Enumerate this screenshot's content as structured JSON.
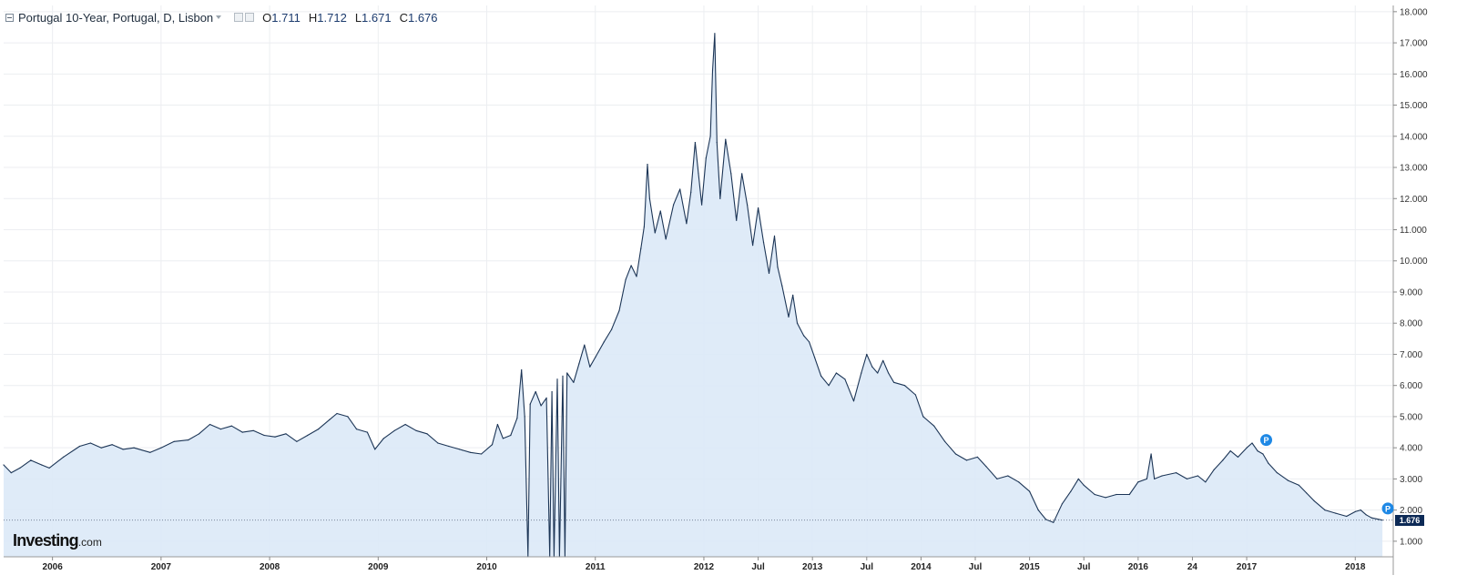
{
  "legend": {
    "title": "Portugal 10-Year, Portugal, D, Lisbon",
    "open_key": "O",
    "open": "1.711",
    "high_key": "H",
    "high": "1.712",
    "low_key": "L",
    "low": "1.671",
    "close_key": "C",
    "close": "1.676"
  },
  "logo": {
    "bold": "Investing",
    "suffix": ".com"
  },
  "last_price_label": "1.676",
  "pin_markers": [
    {
      "label": "P"
    },
    {
      "label": "P"
    }
  ],
  "colors": {
    "line": "#1c3556",
    "fill": "#dce9f7",
    "grid": "#eceef1",
    "price_tag": "#0d2a56",
    "marker": "#1e88e5"
  },
  "chart_data": {
    "type": "area",
    "title": "Portugal 10-Year, Portugal, D, Lisbon",
    "y_axis_side": "right",
    "ylim": [
      0.5,
      18.2
    ],
    "y_ticks": [
      1,
      2,
      3,
      4,
      5,
      6,
      7,
      8,
      9,
      10,
      11,
      12,
      13,
      14,
      15,
      16,
      17,
      18
    ],
    "y_tick_labels": [
      "1.000",
      "2.000",
      "3.000",
      "4.000",
      "5.000",
      "6.000",
      "7.000",
      "8.000",
      "9.000",
      "10.000",
      "11.000",
      "12.000",
      "13.000",
      "14.000",
      "15.000",
      "16.000",
      "17.000",
      "18.000"
    ],
    "x_tick_labels": [
      {
        "t": 2006.0,
        "label": "2006"
      },
      {
        "t": 2007.0,
        "label": "2007"
      },
      {
        "t": 2008.0,
        "label": "2008"
      },
      {
        "t": 2009.0,
        "label": "2009"
      },
      {
        "t": 2010.0,
        "label": "2010"
      },
      {
        "t": 2011.0,
        "label": "2011"
      },
      {
        "t": 2012.0,
        "label": "2012"
      },
      {
        "t": 2012.5,
        "label": "Jul"
      },
      {
        "t": 2013.0,
        "label": "2013"
      },
      {
        "t": 2013.5,
        "label": "Jul"
      },
      {
        "t": 2014.0,
        "label": "2014"
      },
      {
        "t": 2014.5,
        "label": "Jul"
      },
      {
        "t": 2015.0,
        "label": "2015"
      },
      {
        "t": 2015.5,
        "label": "Jul"
      },
      {
        "t": 2016.0,
        "label": "2016"
      },
      {
        "t": 2016.5,
        "label": "24"
      },
      {
        "t": 2017.0,
        "label": "2017"
      },
      {
        "t": 2018.0,
        "label": "2018"
      }
    ],
    "xlim": [
      2005.55,
      2018.35
    ],
    "last_price": 1.676,
    "series": [
      {
        "points": [
          [
            2005.55,
            3.45
          ],
          [
            2005.62,
            3.2
          ],
          [
            2005.7,
            3.35
          ],
          [
            2005.8,
            3.6
          ],
          [
            2005.9,
            3.45
          ],
          [
            2005.97,
            3.35
          ],
          [
            2006.1,
            3.7
          ],
          [
            2006.25,
            4.05
          ],
          [
            2006.35,
            4.15
          ],
          [
            2006.45,
            4.0
          ],
          [
            2006.55,
            4.1
          ],
          [
            2006.65,
            3.95
          ],
          [
            2006.75,
            4.0
          ],
          [
            2006.9,
            3.85
          ],
          [
            2007.0,
            4.0
          ],
          [
            2007.12,
            4.2
          ],
          [
            2007.25,
            4.25
          ],
          [
            2007.35,
            4.45
          ],
          [
            2007.45,
            4.75
          ],
          [
            2007.55,
            4.6
          ],
          [
            2007.65,
            4.7
          ],
          [
            2007.75,
            4.5
          ],
          [
            2007.85,
            4.55
          ],
          [
            2007.95,
            4.4
          ],
          [
            2008.05,
            4.35
          ],
          [
            2008.15,
            4.45
          ],
          [
            2008.25,
            4.2
          ],
          [
            2008.35,
            4.4
          ],
          [
            2008.45,
            4.6
          ],
          [
            2008.55,
            4.9
          ],
          [
            2008.62,
            5.1
          ],
          [
            2008.72,
            5.0
          ],
          [
            2008.8,
            4.6
          ],
          [
            2008.9,
            4.5
          ],
          [
            2008.97,
            3.95
          ],
          [
            2009.05,
            4.3
          ],
          [
            2009.15,
            4.55
          ],
          [
            2009.25,
            4.75
          ],
          [
            2009.35,
            4.55
          ],
          [
            2009.45,
            4.45
          ],
          [
            2009.55,
            4.15
          ],
          [
            2009.65,
            4.05
          ],
          [
            2009.75,
            3.95
          ],
          [
            2009.85,
            3.85
          ],
          [
            2009.95,
            3.8
          ],
          [
            2010.05,
            4.1
          ],
          [
            2010.1,
            4.75
          ],
          [
            2010.15,
            4.3
          ],
          [
            2010.22,
            4.4
          ],
          [
            2010.28,
            4.95
          ],
          [
            2010.32,
            6.5
          ],
          [
            2010.35,
            5.0
          ],
          [
            2010.38,
            0.5
          ],
          [
            2010.4,
            5.4
          ],
          [
            2010.45,
            5.8
          ],
          [
            2010.5,
            5.35
          ],
          [
            2010.55,
            5.6
          ],
          [
            2010.58,
            0.5
          ],
          [
            2010.6,
            5.8
          ],
          [
            2010.62,
            0.5
          ],
          [
            2010.65,
            6.2
          ],
          [
            2010.67,
            0.5
          ],
          [
            2010.7,
            6.3
          ],
          [
            2010.72,
            0.5
          ],
          [
            2010.74,
            6.4
          ],
          [
            2010.8,
            6.1
          ],
          [
            2010.85,
            6.7
          ],
          [
            2010.9,
            7.3
          ],
          [
            2010.95,
            6.6
          ],
          [
            2011.0,
            6.9
          ],
          [
            2011.08,
            7.4
          ],
          [
            2011.15,
            7.8
          ],
          [
            2011.22,
            8.4
          ],
          [
            2011.28,
            9.4
          ],
          [
            2011.33,
            9.85
          ],
          [
            2011.38,
            9.5
          ],
          [
            2011.42,
            10.4
          ],
          [
            2011.45,
            11.1
          ],
          [
            2011.48,
            13.1
          ],
          [
            2011.5,
            12.0
          ],
          [
            2011.55,
            10.9
          ],
          [
            2011.6,
            11.6
          ],
          [
            2011.65,
            10.7
          ],
          [
            2011.72,
            11.8
          ],
          [
            2011.78,
            12.3
          ],
          [
            2011.84,
            11.2
          ],
          [
            2011.88,
            12.2
          ],
          [
            2011.92,
            13.8
          ],
          [
            2011.95,
            12.8
          ],
          [
            2011.98,
            11.8
          ],
          [
            2012.02,
            13.3
          ],
          [
            2012.06,
            14.0
          ],
          [
            2012.08,
            16.1
          ],
          [
            2012.1,
            17.3
          ],
          [
            2012.12,
            13.8
          ],
          [
            2012.15,
            12.0
          ],
          [
            2012.2,
            13.9
          ],
          [
            2012.25,
            12.8
          ],
          [
            2012.3,
            11.3
          ],
          [
            2012.35,
            12.8
          ],
          [
            2012.4,
            11.8
          ],
          [
            2012.45,
            10.5
          ],
          [
            2012.5,
            11.7
          ],
          [
            2012.55,
            10.6
          ],
          [
            2012.6,
            9.6
          ],
          [
            2012.65,
            10.8
          ],
          [
            2012.68,
            9.8
          ],
          [
            2012.72,
            9.2
          ],
          [
            2012.78,
            8.2
          ],
          [
            2012.82,
            8.9
          ],
          [
            2012.86,
            8.0
          ],
          [
            2012.92,
            7.6
          ],
          [
            2012.97,
            7.4
          ],
          [
            2013.02,
            6.9
          ],
          [
            2013.08,
            6.3
          ],
          [
            2013.15,
            6.0
          ],
          [
            2013.22,
            6.4
          ],
          [
            2013.3,
            6.2
          ],
          [
            2013.38,
            5.5
          ],
          [
            2013.45,
            6.4
          ],
          [
            2013.5,
            7.0
          ],
          [
            2013.55,
            6.6
          ],
          [
            2013.6,
            6.4
          ],
          [
            2013.65,
            6.8
          ],
          [
            2013.7,
            6.4
          ],
          [
            2013.75,
            6.1
          ],
          [
            2013.85,
            6.0
          ],
          [
            2013.95,
            5.7
          ],
          [
            2014.02,
            5.0
          ],
          [
            2014.12,
            4.7
          ],
          [
            2014.22,
            4.2
          ],
          [
            2014.32,
            3.8
          ],
          [
            2014.42,
            3.6
          ],
          [
            2014.52,
            3.7
          ],
          [
            2014.6,
            3.4
          ],
          [
            2014.7,
            3.0
          ],
          [
            2014.8,
            3.1
          ],
          [
            2014.9,
            2.9
          ],
          [
            2015.0,
            2.6
          ],
          [
            2015.08,
            2.0
          ],
          [
            2015.15,
            1.7
          ],
          [
            2015.22,
            1.6
          ],
          [
            2015.3,
            2.2
          ],
          [
            2015.38,
            2.6
          ],
          [
            2015.45,
            3.0
          ],
          [
            2015.5,
            2.8
          ],
          [
            2015.6,
            2.5
          ],
          [
            2015.7,
            2.4
          ],
          [
            2015.8,
            2.5
          ],
          [
            2015.92,
            2.5
          ],
          [
            2016.0,
            2.9
          ],
          [
            2016.08,
            3.0
          ],
          [
            2016.12,
            3.8
          ],
          [
            2016.15,
            3.0
          ],
          [
            2016.22,
            3.1
          ],
          [
            2016.35,
            3.2
          ],
          [
            2016.45,
            3.0
          ],
          [
            2016.55,
            3.1
          ],
          [
            2016.62,
            2.9
          ],
          [
            2016.7,
            3.3
          ],
          [
            2016.78,
            3.6
          ],
          [
            2016.85,
            3.9
          ],
          [
            2016.92,
            3.7
          ],
          [
            2017.0,
            4.0
          ],
          [
            2017.05,
            4.15
          ],
          [
            2017.1,
            3.9
          ],
          [
            2017.15,
            3.8
          ],
          [
            2017.2,
            3.5
          ],
          [
            2017.28,
            3.2
          ],
          [
            2017.38,
            2.95
          ],
          [
            2017.48,
            2.8
          ],
          [
            2017.55,
            2.55
          ],
          [
            2017.62,
            2.3
          ],
          [
            2017.72,
            2.0
          ],
          [
            2017.82,
            1.9
          ],
          [
            2017.92,
            1.8
          ],
          [
            2018.0,
            1.95
          ],
          [
            2018.05,
            2.0
          ],
          [
            2018.1,
            1.85
          ],
          [
            2018.15,
            1.75
          ],
          [
            2018.25,
            1.676
          ]
        ]
      }
    ],
    "grid": true,
    "legend_position": "top-left"
  }
}
